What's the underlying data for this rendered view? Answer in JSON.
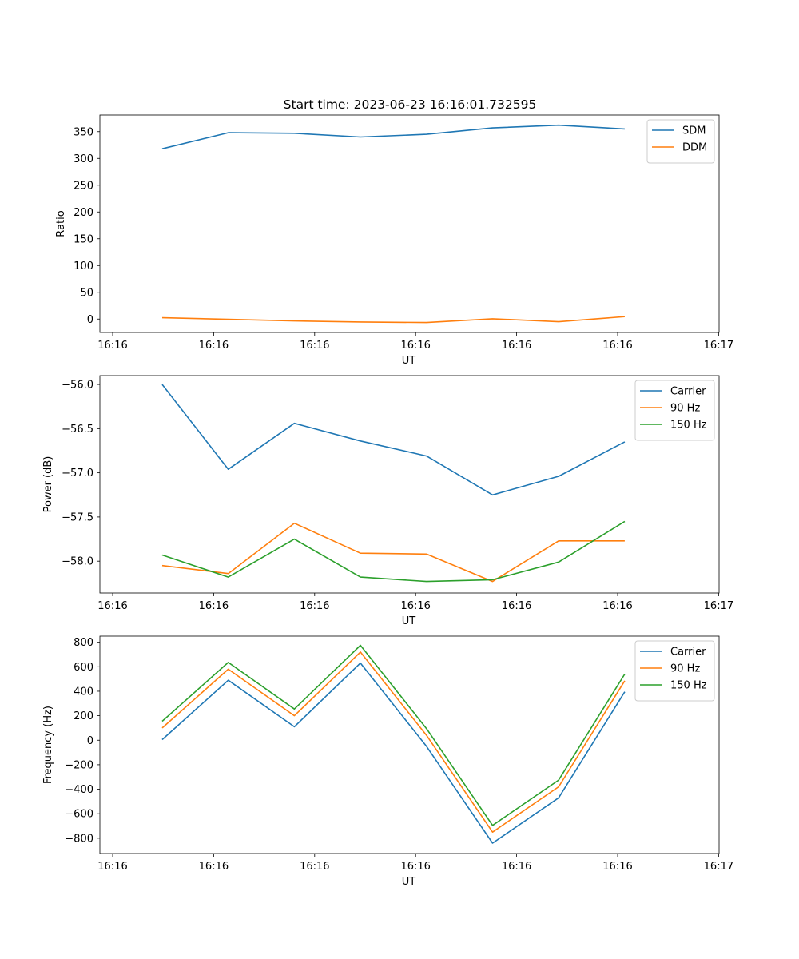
{
  "figure": {
    "title": "Start time: 2023-06-23 16:16:01.732595"
  },
  "chart_data": [
    {
      "type": "line",
      "title": "Start time: 2023-06-23 16:16:01.732595",
      "xlabel": "UT",
      "ylabel": "Ratio",
      "x": [
        "16:16:01.73",
        "16:16:02.73",
        "16:16:03.73",
        "16:16:04.73",
        "16:16:05.73",
        "16:16:06.73",
        "16:16:07.73",
        "16:16:08.73"
      ],
      "xtick_labels": [
        "16:16",
        "16:16",
        "16:16",
        "16:16",
        "16:16",
        "16:16",
        "16:17"
      ],
      "yticks": [
        0,
        50,
        100,
        150,
        200,
        250,
        300,
        350
      ],
      "ylim": [
        -25,
        381
      ],
      "grid": false,
      "legend": "top-right",
      "series": [
        {
          "name": "SDM",
          "color": "#1f77b4",
          "values": [
            318,
            348,
            347,
            340,
            345,
            357,
            362,
            355
          ]
        },
        {
          "name": "DDM",
          "color": "#ff7f0e",
          "values": [
            2.5,
            -0.5,
            -3.5,
            -5.5,
            -6.5,
            0.5,
            -5,
            4.5
          ]
        }
      ]
    },
    {
      "type": "line",
      "title": "",
      "xlabel": "UT",
      "ylabel": "Power (dB)",
      "x": [
        "16:16:01.73",
        "16:16:02.73",
        "16:16:03.73",
        "16:16:04.73",
        "16:16:05.73",
        "16:16:06.73",
        "16:16:07.73",
        "16:16:08.73"
      ],
      "xtick_labels": [
        "16:16",
        "16:16",
        "16:16",
        "16:16",
        "16:16",
        "16:16",
        "16:17"
      ],
      "yticks": [
        -58.0,
        -57.5,
        -57.0,
        -56.5,
        -56.0
      ],
      "ytick_labels": [
        "−58.0",
        "−57.5",
        "−57.0",
        "−56.5",
        "−56.0"
      ],
      "ylim": [
        -58.36,
        -55.9
      ],
      "grid": false,
      "legend": "top-right",
      "series": [
        {
          "name": "Carrier",
          "color": "#1f77b4",
          "values": [
            -56.0,
            -56.96,
            -56.44,
            -56.64,
            -56.81,
            -57.25,
            -57.04,
            -56.65
          ]
        },
        {
          "name": "90 Hz",
          "color": "#ff7f0e",
          "values": [
            -58.05,
            -58.14,
            -57.57,
            -57.91,
            -57.92,
            -58.23,
            -57.77,
            -57.77
          ]
        },
        {
          "name": "150 Hz",
          "color": "#2ca02c",
          "values": [
            -57.93,
            -58.18,
            -57.75,
            -58.18,
            -58.23,
            -58.21,
            -58.01,
            -57.55
          ]
        }
      ]
    },
    {
      "type": "line",
      "title": "",
      "xlabel": "UT",
      "ylabel": "Frequency (Hz)",
      "x": [
        "16:16:01.73",
        "16:16:02.73",
        "16:16:03.73",
        "16:16:04.73",
        "16:16:05.73",
        "16:16:06.73",
        "16:16:07.73",
        "16:16:08.73"
      ],
      "xtick_labels": [
        "16:16",
        "16:16",
        "16:16",
        "16:16",
        "16:16",
        "16:16",
        "16:17"
      ],
      "yticks": [
        -800,
        -600,
        -400,
        -200,
        0,
        200,
        400,
        600,
        800
      ],
      "ytick_labels": [
        "−800",
        "−600",
        "−400",
        "−200",
        "0",
        "200",
        "400",
        "600",
        "800"
      ],
      "ylim": [
        -925,
        850
      ],
      "grid": false,
      "legend": "top-right",
      "series": [
        {
          "name": "Carrier",
          "color": "#1f77b4",
          "values": [
            5,
            490,
            110,
            630,
            -50,
            -840,
            -470,
            395
          ]
        },
        {
          "name": "90 Hz",
          "color": "#ff7f0e",
          "values": [
            100,
            580,
            200,
            720,
            40,
            -750,
            -380,
            485
          ]
        },
        {
          "name": "150 Hz",
          "color": "#2ca02c",
          "values": [
            155,
            635,
            255,
            775,
            95,
            -695,
            -325,
            540
          ]
        }
      ]
    }
  ]
}
